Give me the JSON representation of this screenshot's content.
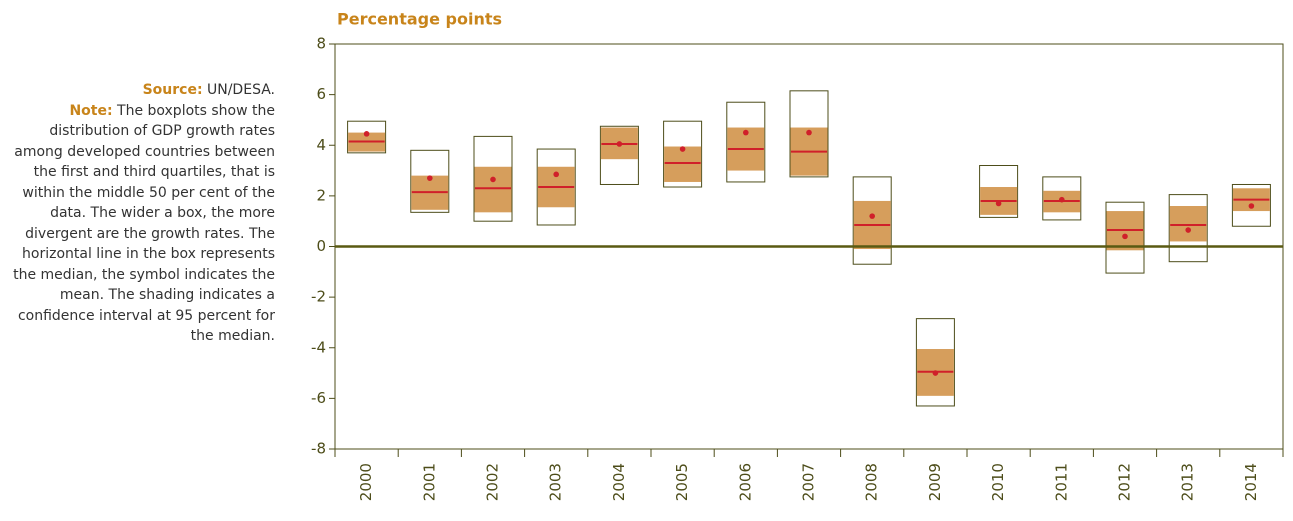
{
  "chart_data": {
    "type": "boxplot",
    "title": "Percentage points",
    "source_label": "Source:",
    "source": "UN/DESA.",
    "note_label": "Note:",
    "note": "The boxplots show the distribution of GDP growth rates among developed countries between the first and third quartiles, that is within the middle 50 per cent of the data. The wider a box, the more divergent are the growth rates. The horizontal line in the box represents the median, the symbol indicates the mean. The shading indicates a confidence interval at 95 percent for the median.",
    "categories": [
      "2000",
      "2001",
      "2002",
      "2003",
      "2004",
      "2005",
      "2006",
      "2007",
      "2008",
      "2009",
      "2010",
      "2011",
      "2012",
      "2013",
      "2014"
    ],
    "q3": [
      4.95,
      3.8,
      4.35,
      3.85,
      4.75,
      4.95,
      5.7,
      6.15,
      2.75,
      -2.85,
      3.2,
      2.75,
      1.75,
      2.05,
      2.45
    ],
    "q1": [
      3.7,
      1.35,
      1.0,
      0.85,
      2.45,
      2.35,
      2.55,
      2.75,
      -0.7,
      -6.3,
      1.15,
      1.05,
      -1.05,
      -0.6,
      0.8
    ],
    "ci_high": [
      4.5,
      2.8,
      3.15,
      3.15,
      4.7,
      3.95,
      4.7,
      4.7,
      1.8,
      -4.05,
      2.35,
      2.2,
      1.4,
      1.6,
      2.3
    ],
    "ci_low": [
      3.75,
      1.45,
      1.35,
      1.55,
      3.45,
      2.55,
      3.0,
      2.8,
      -0.1,
      -5.9,
      1.25,
      1.35,
      -0.15,
      0.2,
      1.4
    ],
    "median": [
      4.15,
      2.15,
      2.3,
      2.35,
      4.05,
      3.3,
      3.85,
      3.75,
      0.85,
      -4.95,
      1.8,
      1.8,
      0.65,
      0.85,
      1.85
    ],
    "mean": [
      4.45,
      2.7,
      2.65,
      2.85,
      4.05,
      3.85,
      4.5,
      4.5,
      1.2,
      -5.0,
      1.7,
      1.85,
      0.4,
      0.65,
      1.6
    ],
    "ylim": [
      -8,
      8
    ],
    "yticks": [
      -8,
      -6,
      -4,
      -2,
      0,
      2,
      4,
      6,
      8
    ],
    "colors": {
      "box": "#ffffff",
      "box_edge": "#4d4d1a",
      "shade": "#d69e5c",
      "median": "#d0202a",
      "mean": "#d0202a"
    }
  }
}
